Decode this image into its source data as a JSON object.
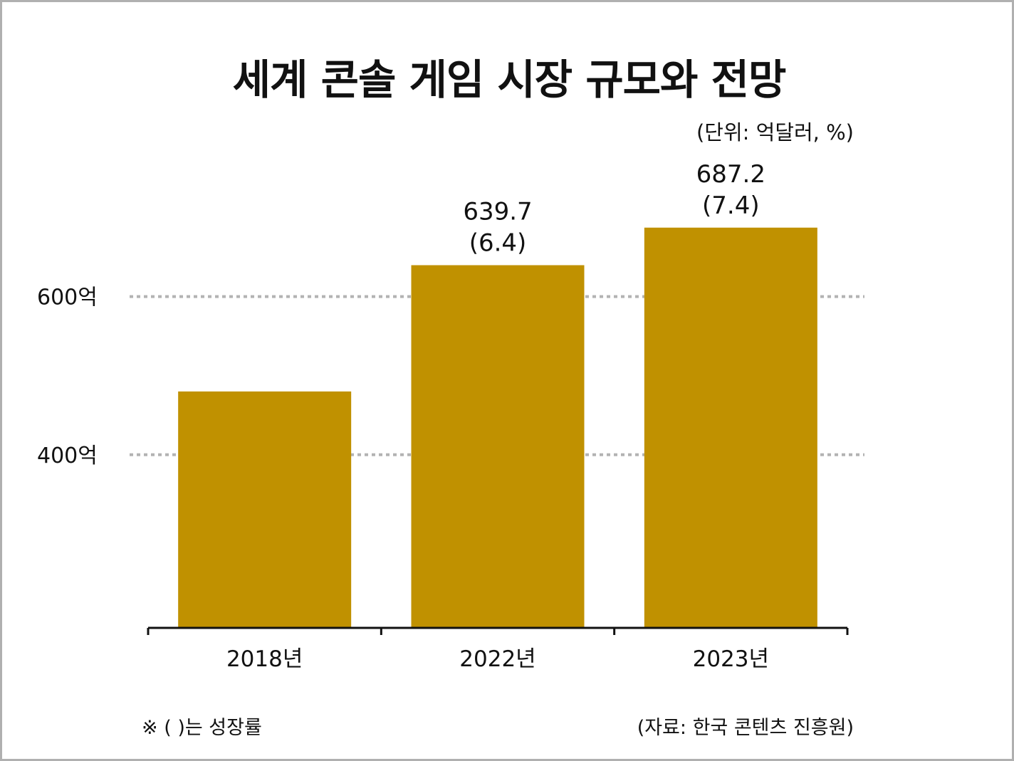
{
  "title": "세계 콘솔 게임 시장 규모와 전망",
  "unit": "(단위: 억달러, %)",
  "note": "※ ( )는 성장률",
  "source": "(자료: 한국 콘텐츠 진흥원)",
  "colors": {
    "bar": "#c09100",
    "grid": "#b3b3b3",
    "axis": "#111111"
  },
  "chart_data": {
    "type": "bar",
    "categories": [
      "2018년",
      "2022년",
      "2023년"
    ],
    "values": [
      480,
      639.7,
      687.2
    ],
    "data_labels": [
      "",
      "639.7",
      "687.2"
    ],
    "growth_labels": [
      "",
      "(6.4)",
      "(7.4)"
    ],
    "y_ticks": [
      {
        "value": 400,
        "label": "400억"
      },
      {
        "value": 600,
        "label": "600억"
      }
    ],
    "ylim": [
      181,
      750
    ],
    "grid": true
  }
}
